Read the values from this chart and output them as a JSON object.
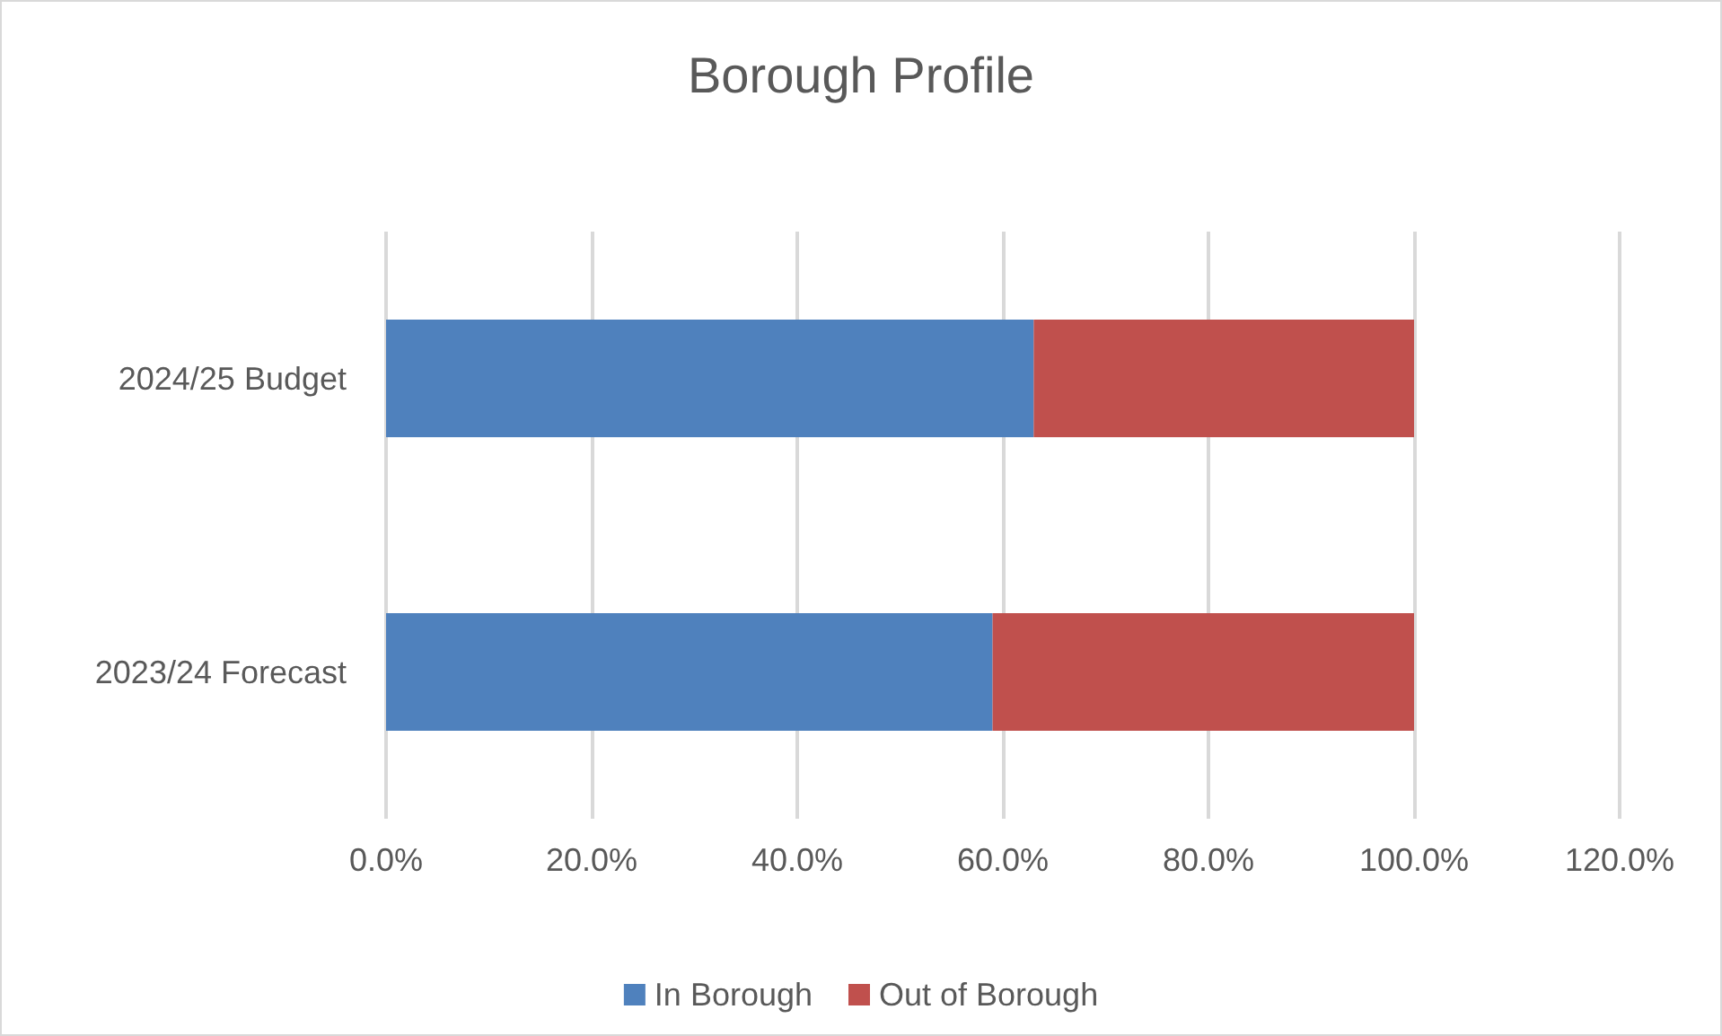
{
  "chart_data": {
    "type": "bar",
    "title": "Borough Profile",
    "orientation": "horizontal",
    "stacked": true,
    "categories": [
      "2024/25 Budget",
      "2023/24 Forecast"
    ],
    "series": [
      {
        "name": "In Borough",
        "color": "#4f81bd",
        "values": [
          63,
          59
        ]
      },
      {
        "name": "Out of Borough",
        "color": "#c0504d",
        "values": [
          37,
          41
        ]
      }
    ],
    "xlim": [
      0,
      120
    ],
    "xticks": [
      {
        "value": 0,
        "label": "0.0%"
      },
      {
        "value": 20,
        "label": "20.0%"
      },
      {
        "value": 40,
        "label": "40.0%"
      },
      {
        "value": 60,
        "label": "60.0%"
      },
      {
        "value": 80,
        "label": "80.0%"
      },
      {
        "value": 100,
        "label": "100.0%"
      },
      {
        "value": 120,
        "label": "120.0%"
      }
    ],
    "grid": "x",
    "legend": "bottom"
  }
}
